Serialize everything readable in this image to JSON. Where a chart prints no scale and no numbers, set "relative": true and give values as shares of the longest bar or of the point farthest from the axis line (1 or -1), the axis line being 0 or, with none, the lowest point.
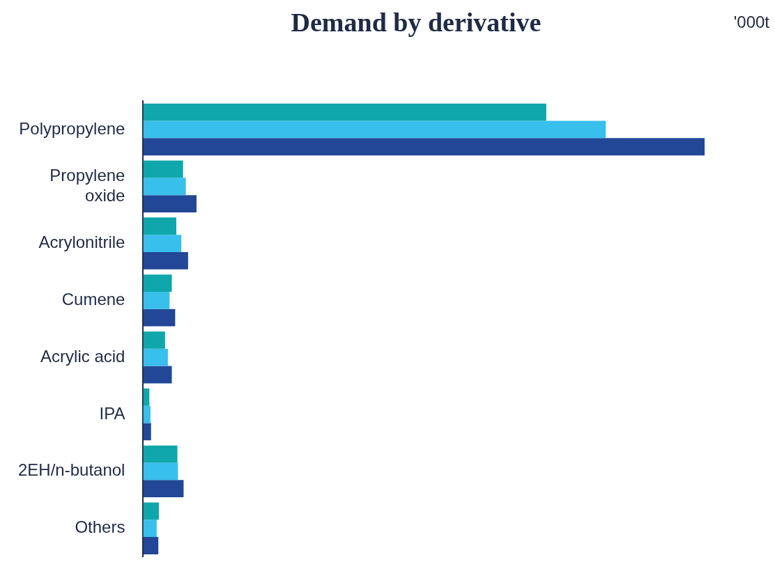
{
  "chart_data": {
    "type": "bar",
    "title": "Demand by derivative",
    "orientation": "horizontal",
    "relative": true,
    "categories": [
      "Polypropylene",
      "Propylene oxide",
      "Acrylonitrile",
      "Cumene",
      "Acrylic acid",
      "IPA",
      "2EH/n-butanol",
      "Others"
    ],
    "series": [
      {
        "color": "#0fa6ac",
        "values": [
          0.718,
          0.071,
          0.059,
          0.051,
          0.039,
          0.011,
          0.061,
          0.028
        ]
      },
      {
        "color": "#38bfec",
        "values": [
          0.824,
          0.076,
          0.068,
          0.047,
          0.044,
          0.013,
          0.062,
          0.024
        ]
      },
      {
        "color": "#214796",
        "values": [
          1,
          0.095,
          0.08,
          0.057,
          0.051,
          0.014,
          0.072,
          0.027
        ]
      }
    ],
    "annotations": [
      "'000t"
    ],
    "legend": false
  }
}
